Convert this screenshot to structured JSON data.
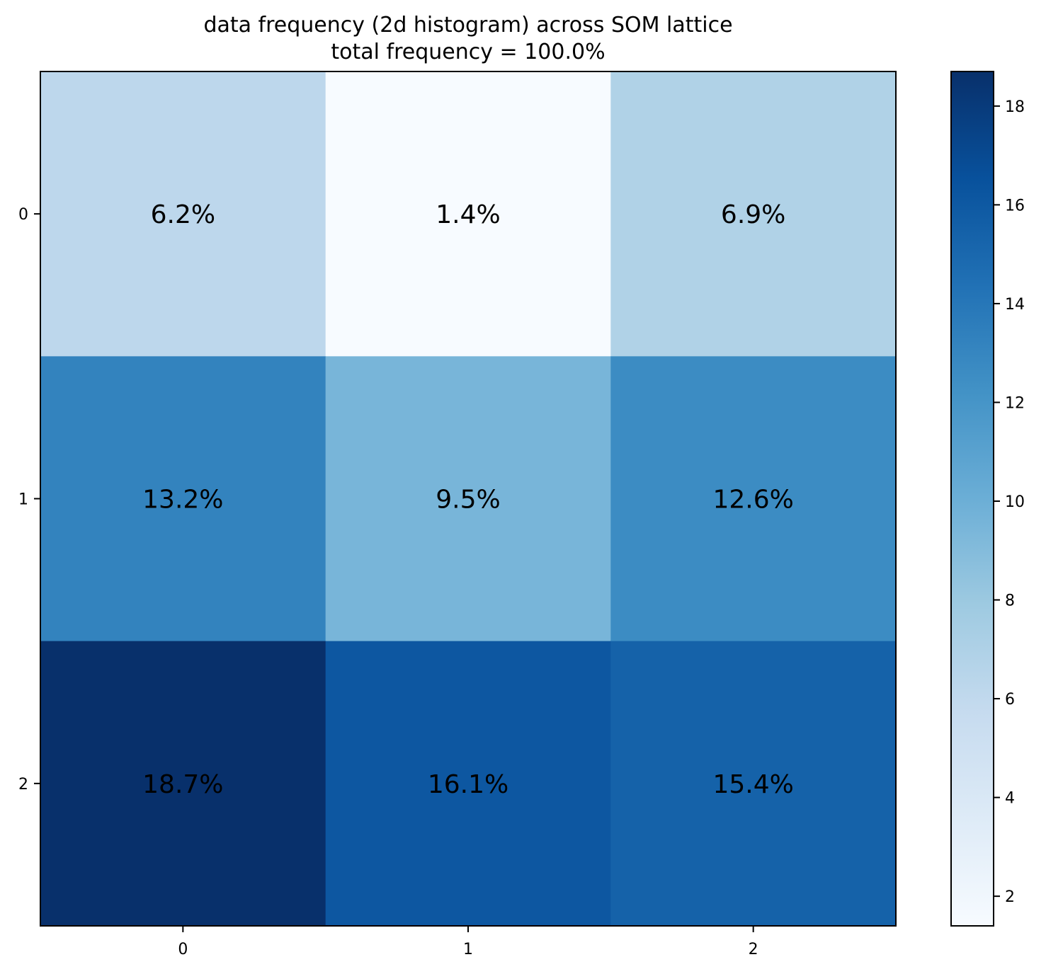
{
  "chart_data": {
    "type": "heatmap",
    "title": "data frequency (2d histogram) across SOM lattice",
    "subtitle": "total frequency = 100.0%",
    "x_ticks": [
      "0",
      "1",
      "2"
    ],
    "y_ticks": [
      "0",
      "1",
      "2"
    ],
    "rows": [
      {
        "values": [
          6.2,
          1.4,
          6.9
        ],
        "labels": [
          "6.2%",
          "1.4%",
          "6.9%"
        ]
      },
      {
        "values": [
          13.2,
          9.5,
          12.6
        ],
        "labels": [
          "13.2%",
          "9.5%",
          "12.6%"
        ]
      },
      {
        "values": [
          18.7,
          16.1,
          15.4
        ],
        "labels": [
          "18.7%",
          "16.1%",
          "15.4%"
        ]
      }
    ],
    "colormap": "Blues",
    "colorbar": {
      "range": [
        1.4,
        18.7
      ],
      "ticks": [
        {
          "value": 2,
          "label": "2"
        },
        {
          "value": 4,
          "label": "4"
        },
        {
          "value": 6,
          "label": "6"
        },
        {
          "value": 8,
          "label": "8"
        },
        {
          "value": 10,
          "label": "10"
        },
        {
          "value": 12,
          "label": "12"
        },
        {
          "value": 14,
          "label": "14"
        },
        {
          "value": 16,
          "label": "16"
        },
        {
          "value": 18,
          "label": "18"
        }
      ]
    },
    "grid": false
  }
}
